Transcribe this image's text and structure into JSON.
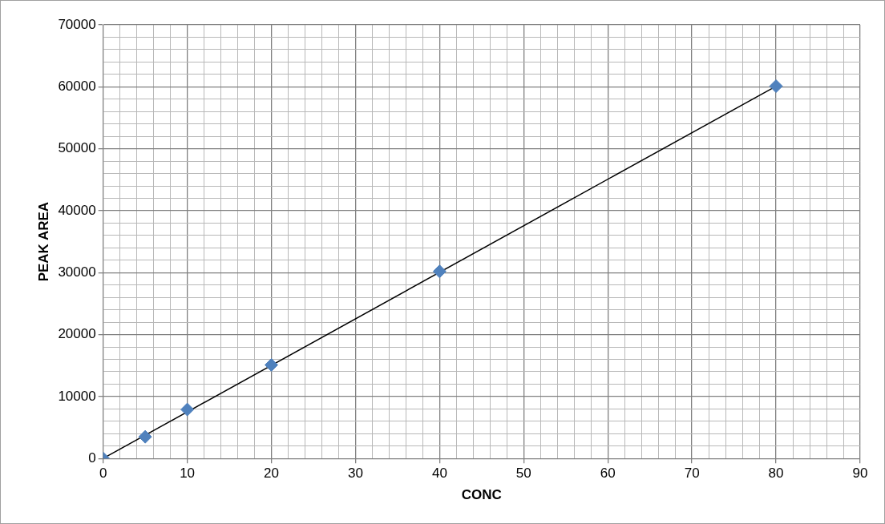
{
  "chart_data": {
    "type": "scatter",
    "xlabel": "CONC",
    "ylabel": "PEAK AREA",
    "x": [
      0,
      5,
      10,
      20,
      40,
      80
    ],
    "series": [
      {
        "type": "scatter",
        "color": "#4f81bd",
        "values": [
          0,
          3500,
          7900,
          15100,
          30200,
          60100
        ],
        "marker": "diamond"
      },
      {
        "type": "line",
        "color": "#000000",
        "x": [
          0,
          80
        ],
        "values": [
          0,
          60100
        ],
        "marker": "none",
        "line_style": "solid"
      }
    ],
    "xlim": [
      0,
      90
    ],
    "ylim": [
      0,
      70000
    ],
    "xticks": [
      0,
      {
        "value": 2,
        "label": null
      },
      {
        "value": 4,
        "label": null
      },
      {
        "value": 6,
        "label": null
      },
      {
        "value": 8,
        "label": null
      },
      10,
      {
        "value": 12,
        "label": null
      },
      {
        "value": 14,
        "label": null
      },
      {
        "value": 16,
        "label": null
      },
      {
        "value": 18,
        "label": null
      },
      20,
      {
        "value": 22,
        "label": null
      },
      {
        "value": 24,
        "label": null
      },
      {
        "value": 26,
        "label": null
      },
      {
        "value": 28,
        "label": null
      },
      30,
      {
        "value": 32,
        "label": null
      },
      {
        "value": 34,
        "label": null
      },
      {
        "value": 36,
        "label": null
      },
      {
        "value": 38,
        "label": null
      },
      40,
      {
        "value": 42,
        "label": null
      },
      {
        "value": 44,
        "label": null
      },
      {
        "value": 46,
        "label": null
      },
      {
        "value": 48,
        "label": null
      },
      50,
      {
        "value": 52,
        "label": null
      },
      {
        "value": 54,
        "label": null
      },
      {
        "value": 56,
        "label": null
      },
      {
        "value": 58,
        "label": null
      },
      60,
      {
        "value": 62,
        "label": null
      },
      {
        "value": 64,
        "label": null
      },
      {
        "value": 66,
        "label": null
      },
      {
        "value": 68,
        "label": null
      },
      70,
      {
        "value": 72,
        "label": null
      },
      {
        "value": 74,
        "label": null
      },
      {
        "value": 76,
        "label": null
      },
      {
        "value": 78,
        "label": null
      },
      80,
      {
        "value": 82,
        "label": null
      },
      {
        "value": 84,
        "label": null
      },
      {
        "value": 86,
        "label": null
      },
      {
        "value": 88,
        "label": null
      },
      90
    ],
    "yticks": [
      0,
      {
        "value": 2000,
        "label": null
      },
      {
        "value": 4000,
        "label": null
      },
      {
        "value": 6000,
        "label": null
      },
      {
        "value": 8000,
        "label": null
      },
      10000,
      {
        "value": 12000,
        "label": null
      },
      {
        "value": 14000,
        "label": null
      },
      {
        "value": 16000,
        "label": null
      },
      {
        "value": 18000,
        "label": null
      },
      20000,
      {
        "value": 22000,
        "label": null
      },
      {
        "value": 24000,
        "label": null
      },
      {
        "value": 26000,
        "label": null
      },
      {
        "value": 28000,
        "label": null
      },
      30000,
      {
        "value": 32000,
        "label": null
      },
      {
        "value": 34000,
        "label": null
      },
      {
        "value": 36000,
        "label": null
      },
      {
        "value": 38000,
        "label": null
      },
      40000,
      {
        "value": 42000,
        "label": null
      },
      {
        "value": 44000,
        "label": null
      },
      {
        "value": 46000,
        "label": null
      },
      {
        "value": 48000,
        "label": null
      },
      50000,
      {
        "value": 52000,
        "label": null
      },
      {
        "value": 54000,
        "label": null
      },
      {
        "value": 56000,
        "label": null
      },
      {
        "value": 58000,
        "label": null
      },
      60000,
      {
        "value": 62000,
        "label": null
      },
      {
        "value": 64000,
        "label": null
      },
      {
        "value": 66000,
        "label": null
      },
      {
        "value": 68000,
        "label": null
      },
      70000
    ],
    "grid": true,
    "legend": false
  }
}
